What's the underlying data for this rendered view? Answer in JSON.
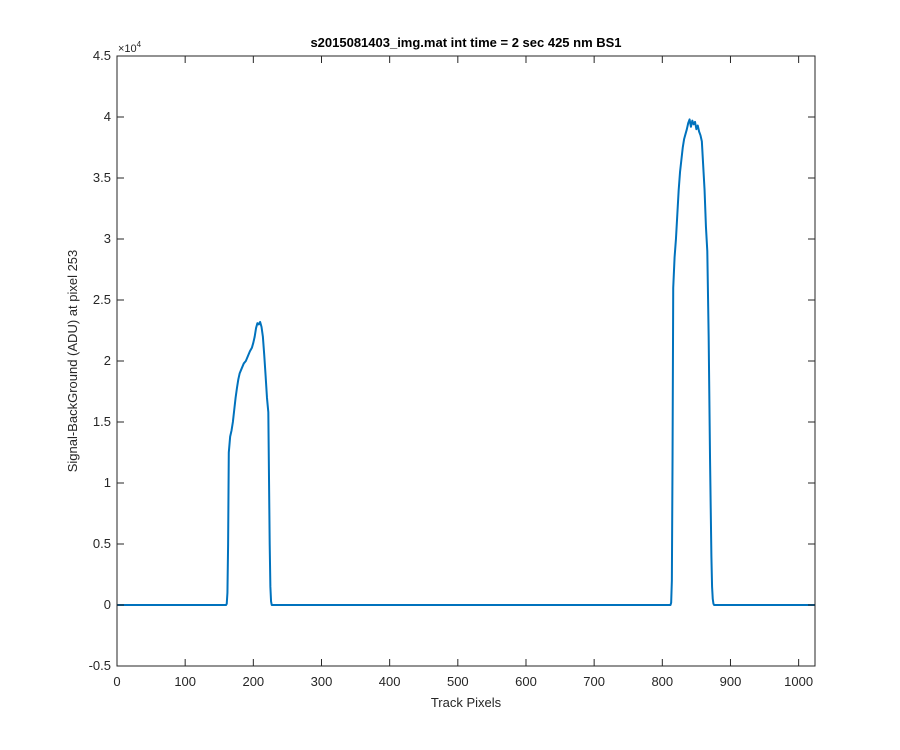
{
  "chart_data": {
    "type": "line",
    "title": "s2015081403_img.mat int time = 2 sec  425 nm BS1",
    "xlabel": "Track Pixels",
    "ylabel": "Signal-BackGround (ADU) at pixel 253",
    "y_exponent_label": "×10",
    "y_exponent_power": "4",
    "xlim": [
      0,
      1024
    ],
    "ylim": [
      -5000,
      45000
    ],
    "x_ticks": [
      0,
      100,
      200,
      300,
      400,
      500,
      600,
      700,
      800,
      900,
      1000
    ],
    "x_tick_labels": [
      "0",
      "100",
      "200",
      "300",
      "400",
      "500",
      "600",
      "700",
      "800",
      "900",
      "1000"
    ],
    "y_ticks": [
      -5000,
      0,
      5000,
      10000,
      15000,
      20000,
      25000,
      30000,
      35000,
      40000,
      45000
    ],
    "y_tick_labels": [
      "-0.5",
      "0",
      "0.5",
      "1",
      "1.5",
      "2",
      "2.5",
      "3",
      "3.5",
      "4",
      "4.5"
    ],
    "grid": false,
    "line_color": "#0072bd",
    "series": [
      {
        "x": [
          0,
          100,
          160,
          161,
          162,
          163,
          164,
          166,
          168,
          170,
          172,
          174,
          176,
          178,
          180,
          183,
          186,
          189,
          192,
          195,
          198,
          200,
          202,
          204,
          206,
          208,
          210,
          212,
          214,
          216,
          218,
          220,
          222,
          224,
          225,
          226,
          227,
          228,
          230,
          300,
          400,
          500,
          600,
          700,
          800,
          812,
          813,
          814,
          815,
          816,
          818,
          820,
          822,
          824,
          826,
          828,
          830,
          832,
          834,
          836,
          838,
          840,
          842,
          844,
          846,
          848,
          850,
          852,
          854,
          856,
          858,
          860,
          862,
          864,
          866,
          868,
          870,
          872,
          873,
          874,
          875,
          876,
          878,
          880,
          900,
          1000,
          1024
        ],
        "y": [
          0,
          0,
          0,
          100,
          1000,
          5000,
          12500,
          13800,
          14300,
          15000,
          16000,
          17000,
          17800,
          18500,
          19000,
          19400,
          19800,
          20000,
          20400,
          20800,
          21100,
          21500,
          22000,
          22700,
          23100,
          23000,
          23200,
          22800,
          22000,
          20500,
          18800,
          17000,
          15800,
          5000,
          1500,
          300,
          0,
          0,
          0,
          0,
          0,
          0,
          0,
          0,
          0,
          0,
          200,
          2000,
          12000,
          26000,
          28500,
          30000,
          32000,
          34000,
          35500,
          36500,
          37500,
          38200,
          38600,
          39000,
          39500,
          39800,
          39200,
          39700,
          39400,
          39600,
          39000,
          39300,
          38800,
          38500,
          38000,
          36000,
          34000,
          31000,
          29000,
          22000,
          12000,
          4000,
          1500,
          500,
          100,
          0,
          0,
          0,
          0,
          0,
          0
        ]
      }
    ]
  }
}
